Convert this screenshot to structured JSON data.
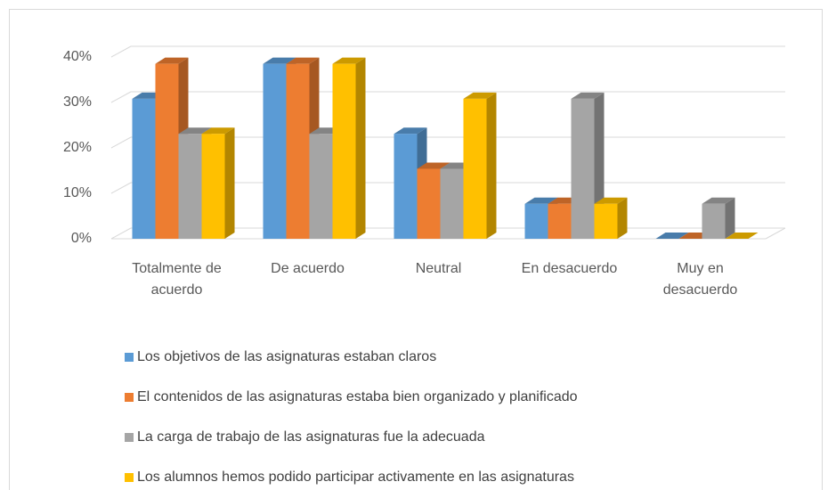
{
  "chart_data": {
    "type": "bar3d",
    "categories": [
      "Totalmente de acuerdo",
      "De acuerdo",
      "Neutral",
      "En desacuerdo",
      "Muy en desacuerdo"
    ],
    "series": [
      {
        "name": "Los objetivos de las asignaturas estaban claros",
        "color": "#5b9bd5",
        "values": [
          30.8,
          38.5,
          23.1,
          7.7,
          0
        ]
      },
      {
        "name": "El contenidos de las asignaturas estaba bien organizado y planificado",
        "color": "#ed7d31",
        "values": [
          38.5,
          38.5,
          15.4,
          7.7,
          0
        ]
      },
      {
        "name": "La carga de trabajo de las asignaturas fue la adecuada",
        "color": "#a5a5a5",
        "values": [
          23.1,
          23.1,
          15.4,
          30.8,
          7.7
        ]
      },
      {
        "name": "Los alumnos hemos podido participar activamente en las asignaturas",
        "color": "#ffc000",
        "values": [
          23.1,
          38.5,
          30.8,
          7.7,
          0
        ]
      }
    ],
    "ylim": [
      0,
      40
    ],
    "yticks": [
      {
        "value": 0,
        "label": "0%"
      },
      {
        "value": 10,
        "label": "10%"
      },
      {
        "value": 20,
        "label": "20%"
      },
      {
        "value": 30,
        "label": "30%"
      },
      {
        "value": 40,
        "label": "40%"
      }
    ],
    "grid": true,
    "legend": "bottom"
  }
}
